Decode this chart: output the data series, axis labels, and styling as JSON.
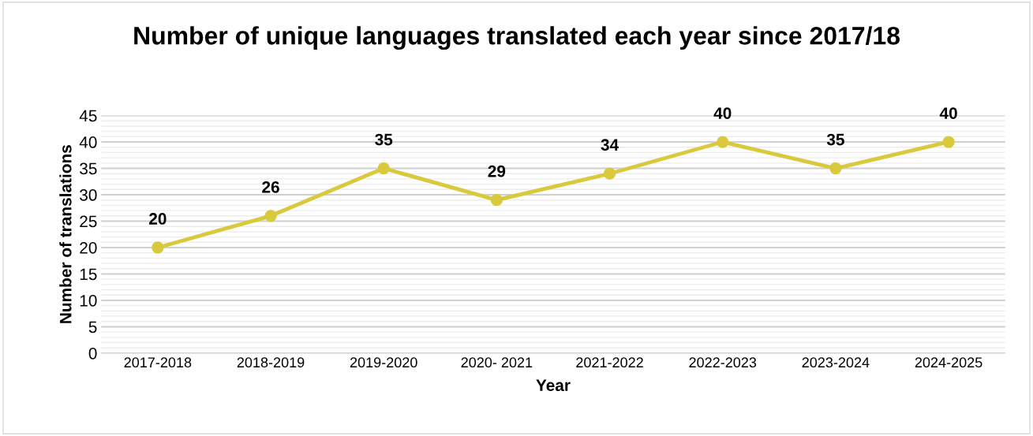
{
  "chart_data": {
    "type": "line",
    "title": "Number of unique languages translated each year since 2017/18",
    "xlabel": "Year",
    "ylabel": "Number of translations",
    "categories": [
      "2017-2018",
      "2018-2019",
      "2019-2020",
      "2020- 2021",
      "2021-2022",
      "2022-2023",
      "2023-2024",
      "2024-2025"
    ],
    "series": [
      {
        "color": "#d9c93c",
        "values": [
          20,
          26,
          35,
          29,
          34,
          40,
          35,
          40
        ]
      }
    ],
    "ylim": [
      0,
      45
    ],
    "yticks": [
      0,
      5,
      10,
      15,
      20,
      25,
      30,
      35,
      40,
      45
    ],
    "grid": "y",
    "marker": "circle",
    "line_style": "solid",
    "data_labels": true
  }
}
